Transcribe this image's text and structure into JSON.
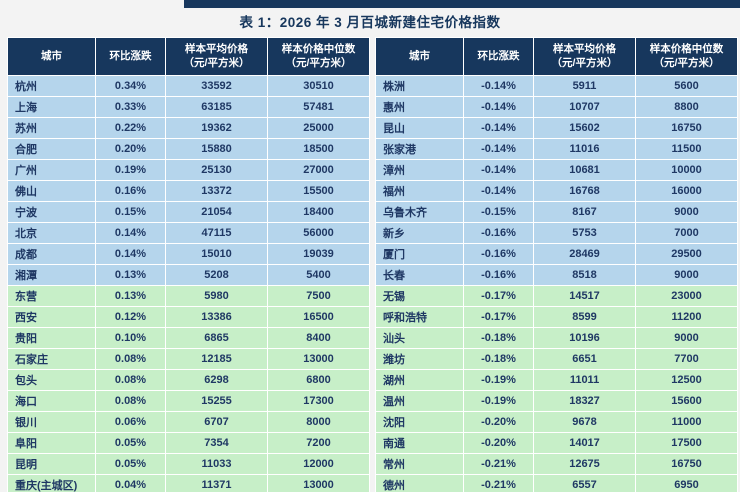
{
  "page": {
    "title": "表 1：2026 年 3 月百城新建住宅价格指数"
  },
  "colors": {
    "header_bg": "#17375D",
    "row_blue": "#B5D5EC",
    "row_green": "#C7EFC8",
    "text_navy": "#1F3864"
  },
  "chart_data": {
    "type": "table",
    "title": "表 1：2026 年 3 月百城新建住宅价格指数",
    "columns": [
      "城市",
      "环比涨跌",
      "样本平均价格\n（元/平方米）",
      "样本价格中位数\n（元/平方米）"
    ],
    "highlight": {
      "blue_rows_per_table": 10,
      "green_rows_per_table": 10
    },
    "left_rows": [
      [
        "杭州",
        "0.34%",
        "33592",
        "30510"
      ],
      [
        "上海",
        "0.33%",
        "63185",
        "57481"
      ],
      [
        "苏州",
        "0.22%",
        "19362",
        "25000"
      ],
      [
        "合肥",
        "0.20%",
        "15880",
        "18500"
      ],
      [
        "广州",
        "0.19%",
        "25130",
        "27000"
      ],
      [
        "佛山",
        "0.16%",
        "13372",
        "15500"
      ],
      [
        "宁波",
        "0.15%",
        "21054",
        "18400"
      ],
      [
        "北京",
        "0.14%",
        "47115",
        "56000"
      ],
      [
        "成都",
        "0.14%",
        "15010",
        "19039"
      ],
      [
        "湘潭",
        "0.13%",
        "5208",
        "5400"
      ],
      [
        "东营",
        "0.13%",
        "5980",
        "7500"
      ],
      [
        "西安",
        "0.12%",
        "13386",
        "16500"
      ],
      [
        "贵阳",
        "0.10%",
        "6865",
        "8400"
      ],
      [
        "石家庄",
        "0.08%",
        "12185",
        "13000"
      ],
      [
        "包头",
        "0.08%",
        "6298",
        "6800"
      ],
      [
        "海口",
        "0.08%",
        "15255",
        "17300"
      ],
      [
        "银川",
        "0.06%",
        "6707",
        "8000"
      ],
      [
        "阜阳",
        "0.05%",
        "7354",
        "7200"
      ],
      [
        "昆明",
        "0.05%",
        "11033",
        "12000"
      ],
      [
        "重庆(主城区)",
        "0.04%",
        "11371",
        "13000"
      ]
    ],
    "right_rows": [
      [
        "株洲",
        "-0.14%",
        "5911",
        "5600"
      ],
      [
        "惠州",
        "-0.14%",
        "10707",
        "8800"
      ],
      [
        "昆山",
        "-0.14%",
        "15602",
        "16750"
      ],
      [
        "张家港",
        "-0.14%",
        "11016",
        "11500"
      ],
      [
        "漳州",
        "-0.14%",
        "10681",
        "10000"
      ],
      [
        "福州",
        "-0.14%",
        "16768",
        "16000"
      ],
      [
        "乌鲁木齐",
        "-0.15%",
        "8167",
        "9000"
      ],
      [
        "新乡",
        "-0.16%",
        "5753",
        "7000"
      ],
      [
        "厦门",
        "-0.16%",
        "28469",
        "29500"
      ],
      [
        "长春",
        "-0.16%",
        "8518",
        "9000"
      ],
      [
        "无锡",
        "-0.17%",
        "14517",
        "23000"
      ],
      [
        "呼和浩特",
        "-0.17%",
        "8599",
        "11200"
      ],
      [
        "汕头",
        "-0.18%",
        "10196",
        "9000"
      ],
      [
        "潍坊",
        "-0.18%",
        "6651",
        "7700"
      ],
      [
        "湖州",
        "-0.19%",
        "11011",
        "12500"
      ],
      [
        "温州",
        "-0.19%",
        "18327",
        "15600"
      ],
      [
        "沈阳",
        "-0.20%",
        "9678",
        "11000"
      ],
      [
        "南通",
        "-0.20%",
        "14017",
        "17500"
      ],
      [
        "常州",
        "-0.21%",
        "12675",
        "16750"
      ],
      [
        "德州",
        "-0.21%",
        "6557",
        "6950"
      ]
    ]
  }
}
